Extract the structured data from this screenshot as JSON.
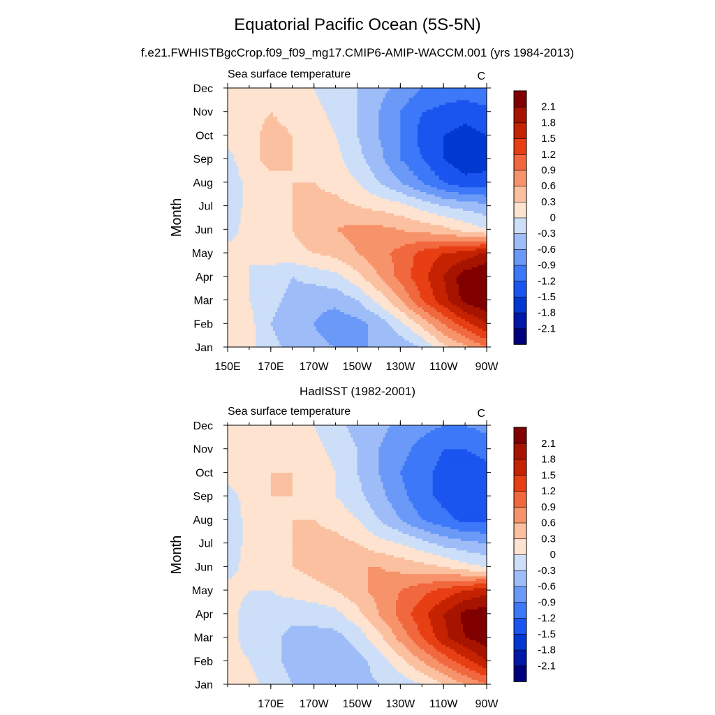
{
  "title": "Equatorial Pacific Ocean (5S-5N)",
  "subtitle": "f.e21.FWHISTBgcCrop.f09_f09_mg17.CMIP6-AMIP-WACCM.001 (yrs 1984-2013)",
  "colors": {
    "levels": [
      "#00007f",
      "#0018a8",
      "#0038d0",
      "#1a55f0",
      "#3c78f8",
      "#6a99f8",
      "#9ebcf8",
      "#cddff8",
      "#fde3d0",
      "#fbc0a0",
      "#f7936a",
      "#f2683e",
      "#e83e14",
      "#c42200",
      "#a61400",
      "#800000"
    ]
  },
  "chart_data": [
    {
      "type": "heatmap",
      "panel_title": "",
      "left_label": "Sea surface temperature",
      "right_label": "C",
      "ylabel": "Month",
      "xlabel": "",
      "y_categories": [
        "Jan",
        "Feb",
        "Mar",
        "Apr",
        "May",
        "Jun",
        "Jul",
        "Aug",
        "Sep",
        "Oct",
        "Nov",
        "Dec"
      ],
      "x_ticks": [
        "150E",
        "170E",
        "170W",
        "150W",
        "130W",
        "110W",
        "90W"
      ],
      "x_tick_values": [
        150,
        170,
        190,
        210,
        230,
        250,
        270
      ],
      "xlim": [
        150,
        270
      ],
      "colorbar_labels": [
        "2.1",
        "1.8",
        "1.5",
        "1.2",
        "0.9",
        "0.6",
        "0.3",
        "0",
        "-0.3",
        "-0.6",
        "-0.9",
        "-1.2",
        "-1.5",
        "-1.8",
        "-2.1"
      ],
      "levels": [
        -2.1,
        -1.8,
        -1.5,
        -1.2,
        -0.9,
        -0.6,
        -0.3,
        0,
        0.3,
        0.6,
        0.9,
        1.2,
        1.5,
        1.8,
        2.1
      ],
      "x": [
        150,
        160,
        170,
        180,
        190,
        200,
        210,
        220,
        230,
        240,
        250,
        260,
        270
      ],
      "values": [
        [
          0.2,
          0.1,
          -0.2,
          -0.4,
          -0.5,
          -0.6,
          -0.6,
          -0.6,
          -0.5,
          -0.3,
          0.2,
          0.5,
          0.9
        ],
        [
          0.2,
          0.1,
          -0.3,
          -0.5,
          -0.6,
          -0.8,
          -0.7,
          -0.5,
          -0.1,
          0.4,
          0.9,
          1.4,
          1.8
        ],
        [
          0.1,
          0.0,
          -0.2,
          -0.4,
          -0.5,
          -0.5,
          -0.3,
          0.1,
          0.6,
          1.2,
          1.7,
          2.2,
          2.4
        ],
        [
          0.1,
          0.0,
          -0.1,
          -0.3,
          -0.2,
          -0.1,
          0.2,
          0.6,
          1.0,
          1.4,
          1.8,
          2.3,
          2.4
        ],
        [
          0.1,
          0.0,
          0.1,
          0.2,
          0.3,
          0.4,
          0.6,
          0.8,
          1.0,
          1.3,
          1.5,
          1.6,
          1.9
        ],
        [
          -0.1,
          0.1,
          0.2,
          0.3,
          0.5,
          0.6,
          0.7,
          0.7,
          0.6,
          0.5,
          0.4,
          0.2,
          0.0
        ],
        [
          -0.2,
          0.1,
          0.2,
          0.3,
          0.4,
          0.4,
          0.3,
          0.2,
          0.1,
          -0.1,
          -0.3,
          -0.4,
          -0.5
        ],
        [
          -0.2,
          0.1,
          0.2,
          0.3,
          0.3,
          0.2,
          0.0,
          -0.3,
          -0.6,
          -0.9,
          -1.2,
          -1.4,
          -1.4
        ],
        [
          -0.1,
          0.2,
          0.4,
          0.3,
          0.2,
          0.1,
          -0.2,
          -0.5,
          -0.9,
          -1.2,
          -1.5,
          -1.7,
          -1.6
        ],
        [
          0.1,
          0.2,
          0.4,
          0.3,
          0.2,
          0.0,
          -0.3,
          -0.6,
          -0.9,
          -1.3,
          -1.5,
          -1.6,
          -1.5
        ],
        [
          0.2,
          0.2,
          0.3,
          0.2,
          0.1,
          -0.1,
          -0.3,
          -0.6,
          -0.9,
          -1.2,
          -1.3,
          -1.4,
          -1.3
        ],
        [
          0.2,
          0.2,
          0.2,
          0.1,
          0.0,
          -0.2,
          -0.3,
          -0.5,
          -0.7,
          -0.9,
          -1.0,
          -1.0,
          -0.9
        ]
      ]
    },
    {
      "type": "heatmap",
      "panel_title": "HadISST (1982-2001)",
      "left_label": "Sea surface temperature",
      "right_label": "C",
      "ylabel": "Month",
      "xlabel": "",
      "y_categories": [
        "Jan",
        "Feb",
        "Mar",
        "Apr",
        "May",
        "Jun",
        "Jul",
        "Aug",
        "Sep",
        "Oct",
        "Nov",
        "Dec"
      ],
      "x_ticks": [
        "170E",
        "170W",
        "150W",
        "130W",
        "110W",
        "90W"
      ],
      "x_tick_values": [
        170,
        190,
        210,
        230,
        250,
        270
      ],
      "xlim": [
        150,
        270
      ],
      "colorbar_labels": [
        "2.1",
        "1.8",
        "1.5",
        "1.2",
        "0.9",
        "0.6",
        "0.3",
        "0",
        "-0.3",
        "-0.6",
        "-0.9",
        "-1.2",
        "-1.5",
        "-1.8",
        "-2.1"
      ],
      "levels": [
        -2.1,
        -1.8,
        -1.5,
        -1.2,
        -0.9,
        -0.6,
        -0.3,
        0,
        0.3,
        0.6,
        0.9,
        1.2,
        1.5,
        1.8,
        2.1
      ],
      "x": [
        150,
        160,
        170,
        180,
        190,
        200,
        210,
        220,
        230,
        240,
        250,
        260,
        270
      ],
      "values": [
        [
          0.2,
          0.1,
          -0.1,
          -0.3,
          -0.4,
          -0.4,
          -0.4,
          -0.3,
          -0.2,
          0.0,
          0.3,
          0.6,
          0.9
        ],
        [
          0.1,
          0.0,
          -0.2,
          -0.4,
          -0.5,
          -0.5,
          -0.4,
          -0.2,
          0.2,
          0.6,
          1.0,
          1.4,
          1.8
        ],
        [
          0.1,
          -0.1,
          -0.2,
          -0.4,
          -0.4,
          -0.4,
          -0.2,
          0.2,
          0.7,
          1.2,
          1.7,
          2.1,
          2.3
        ],
        [
          0.1,
          -0.1,
          -0.1,
          -0.2,
          -0.2,
          -0.1,
          0.2,
          0.6,
          1.0,
          1.4,
          1.8,
          2.2,
          2.3
        ],
        [
          0.1,
          0.0,
          0.0,
          0.1,
          0.2,
          0.3,
          0.5,
          0.7,
          0.9,
          1.1,
          1.3,
          1.5,
          1.7
        ],
        [
          -0.1,
          0.1,
          0.2,
          0.3,
          0.4,
          0.5,
          0.6,
          0.6,
          0.5,
          0.4,
          0.3,
          0.1,
          0.0
        ],
        [
          -0.2,
          0.1,
          0.2,
          0.3,
          0.4,
          0.4,
          0.3,
          0.1,
          0.0,
          -0.2,
          -0.4,
          -0.5,
          -0.6
        ],
        [
          -0.2,
          0.1,
          0.2,
          0.3,
          0.3,
          0.2,
          0.0,
          -0.3,
          -0.6,
          -0.9,
          -1.1,
          -1.3,
          -1.3
        ],
        [
          -0.1,
          0.1,
          0.3,
          0.3,
          0.2,
          0.0,
          -0.2,
          -0.5,
          -0.8,
          -1.1,
          -1.3,
          -1.4,
          -1.4
        ],
        [
          0.1,
          0.2,
          0.3,
          0.3,
          0.2,
          0.0,
          -0.3,
          -0.6,
          -0.9,
          -1.1,
          -1.3,
          -1.4,
          -1.3
        ],
        [
          0.2,
          0.2,
          0.2,
          0.2,
          0.1,
          -0.1,
          -0.3,
          -0.6,
          -0.8,
          -1.0,
          -1.2,
          -1.2,
          -1.1
        ],
        [
          0.2,
          0.2,
          0.2,
          0.1,
          0.0,
          -0.2,
          -0.4,
          -0.5,
          -0.7,
          -0.8,
          -0.9,
          -0.9,
          -0.8
        ]
      ]
    }
  ]
}
